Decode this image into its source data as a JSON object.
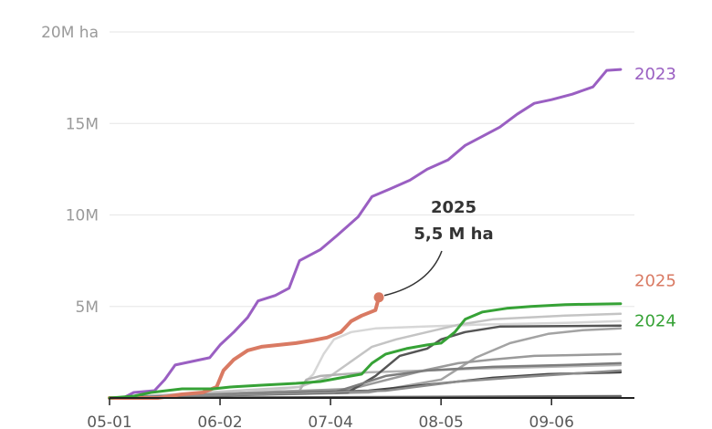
{
  "chart_data": {
    "type": "line",
    "x_format": "MM-DD",
    "xlim": [
      "05-01",
      "09-30"
    ],
    "ylim": [
      0,
      20
    ],
    "y_unit": "M ha",
    "grid": true,
    "y_ticks": [
      {
        "value": 0,
        "label": ""
      },
      {
        "value": 5,
        "label": "5M"
      },
      {
        "value": 10,
        "label": "10M"
      },
      {
        "value": 15,
        "label": "15M"
      },
      {
        "value": 20,
        "label": "20M ha"
      }
    ],
    "x_ticks": [
      "05-01",
      "06-02",
      "07-04",
      "08-05",
      "09-06"
    ],
    "annotation": {
      "line1": "2025",
      "line2": "5,5 M ha",
      "x": "07-18",
      "y": 5.5
    },
    "series": [
      {
        "name": "2023",
        "color": "#9a5fc2",
        "width": 3,
        "label": "2023",
        "points": [
          [
            "05-01",
            0
          ],
          [
            "05-05",
            0
          ],
          [
            "05-08",
            0.3
          ],
          [
            "05-14",
            0.4
          ],
          [
            "05-17",
            1.0
          ],
          [
            "05-20",
            1.8
          ],
          [
            "05-25",
            2.0
          ],
          [
            "05-30",
            2.2
          ],
          [
            "06-02",
            2.9
          ],
          [
            "06-06",
            3.6
          ],
          [
            "06-10",
            4.4
          ],
          [
            "06-13",
            5.3
          ],
          [
            "06-18",
            5.6
          ],
          [
            "06-22",
            6.0
          ],
          [
            "06-25",
            7.5
          ],
          [
            "07-01",
            8.1
          ],
          [
            "07-06",
            8.9
          ],
          [
            "07-12",
            9.9
          ],
          [
            "07-16",
            11.0
          ],
          [
            "07-21",
            11.4
          ],
          [
            "07-27",
            11.9
          ],
          [
            "08-01",
            12.5
          ],
          [
            "08-07",
            13.0
          ],
          [
            "08-12",
            13.8
          ],
          [
            "08-17",
            14.3
          ],
          [
            "08-22",
            14.8
          ],
          [
            "08-27",
            15.5
          ],
          [
            "09-01",
            16.1
          ],
          [
            "09-06",
            16.3
          ],
          [
            "09-12",
            16.6
          ],
          [
            "09-18",
            17.0
          ],
          [
            "09-22",
            17.9
          ],
          [
            "09-26",
            17.95
          ]
        ]
      },
      {
        "name": "2025",
        "color": "#d97a63",
        "width": 4,
        "label": "2025",
        "points": [
          [
            "05-01",
            0
          ],
          [
            "05-15",
            0
          ],
          [
            "05-22",
            0.2
          ],
          [
            "05-28",
            0.3
          ],
          [
            "06-01",
            0.6
          ],
          [
            "06-03",
            1.5
          ],
          [
            "06-06",
            2.1
          ],
          [
            "06-10",
            2.6
          ],
          [
            "06-14",
            2.8
          ],
          [
            "06-19",
            2.9
          ],
          [
            "06-24",
            3.0
          ],
          [
            "06-29",
            3.15
          ],
          [
            "07-03",
            3.3
          ],
          [
            "07-07",
            3.6
          ],
          [
            "07-10",
            4.2
          ],
          [
            "07-13",
            4.5
          ],
          [
            "07-17",
            4.8
          ],
          [
            "07-18",
            5.5
          ]
        ]
      },
      {
        "name": "2024",
        "color": "#36a236",
        "width": 3,
        "label": "2024",
        "points": [
          [
            "05-01",
            0
          ],
          [
            "05-08",
            0.1
          ],
          [
            "05-13",
            0.3
          ],
          [
            "05-22",
            0.5
          ],
          [
            "05-31",
            0.5
          ],
          [
            "06-05",
            0.6
          ],
          [
            "06-14",
            0.7
          ],
          [
            "06-24",
            0.8
          ],
          [
            "07-01",
            0.9
          ],
          [
            "07-07",
            1.1
          ],
          [
            "07-13",
            1.3
          ],
          [
            "07-16",
            1.9
          ],
          [
            "07-20",
            2.4
          ],
          [
            "07-26",
            2.7
          ],
          [
            "08-01",
            2.9
          ],
          [
            "08-05",
            3.0
          ],
          [
            "08-09",
            3.6
          ],
          [
            "08-12",
            4.3
          ],
          [
            "08-17",
            4.7
          ],
          [
            "08-24",
            4.9
          ],
          [
            "08-31",
            5.0
          ],
          [
            "09-10",
            5.1
          ],
          [
            "09-26",
            5.15
          ]
        ]
      },
      {
        "name": "",
        "color": "#d7d7d7",
        "width": 2.5,
        "points": [
          [
            "05-01",
            0
          ],
          [
            "06-10",
            0.3
          ],
          [
            "06-25",
            0.6
          ],
          [
            "06-29",
            1.3
          ],
          [
            "07-02",
            2.4
          ],
          [
            "07-05",
            3.2
          ],
          [
            "07-10",
            3.6
          ],
          [
            "07-17",
            3.8
          ],
          [
            "07-31",
            3.9
          ],
          [
            "08-15",
            4.0
          ],
          [
            "09-10",
            4.1
          ],
          [
            "09-26",
            4.2
          ]
        ]
      },
      {
        "name": "",
        "color": "#c4c4c4",
        "width": 2.5,
        "points": [
          [
            "05-01",
            0
          ],
          [
            "06-25",
            0.6
          ],
          [
            "07-04",
            1.2
          ],
          [
            "07-16",
            2.8
          ],
          [
            "07-23",
            3.2
          ],
          [
            "08-01",
            3.6
          ],
          [
            "08-10",
            4.0
          ],
          [
            "08-20",
            4.3
          ],
          [
            "09-10",
            4.5
          ],
          [
            "09-26",
            4.6
          ]
        ]
      },
      {
        "name": "",
        "color": "#b3b3b3",
        "width": 2.5,
        "points": [
          [
            "05-01",
            0
          ],
          [
            "06-25",
            0.4
          ],
          [
            "06-27",
            1.0
          ],
          [
            "07-01",
            1.2
          ],
          [
            "07-15",
            1.4
          ],
          [
            "08-01",
            1.5
          ],
          [
            "08-15",
            1.6
          ],
          [
            "09-26",
            1.8
          ]
        ]
      },
      {
        "name": "",
        "color": "#a3a3a3",
        "width": 2.5,
        "points": [
          [
            "05-01",
            0
          ],
          [
            "07-15",
            0.3
          ],
          [
            "08-05",
            1.0
          ],
          [
            "08-15",
            2.2
          ],
          [
            "08-25",
            3.0
          ],
          [
            "09-05",
            3.5
          ],
          [
            "09-15",
            3.7
          ],
          [
            "09-26",
            3.8
          ]
        ]
      },
      {
        "name": "",
        "color": "#9a9a9a",
        "width": 2.5,
        "points": [
          [
            "05-01",
            0
          ],
          [
            "07-10",
            0.5
          ],
          [
            "07-31",
            1.5
          ],
          [
            "08-10",
            1.9
          ],
          [
            "08-20",
            2.1
          ],
          [
            "09-01",
            2.3
          ],
          [
            "09-26",
            2.4
          ]
        ]
      },
      {
        "name": "",
        "color": "#555555",
        "width": 2.5,
        "points": [
          [
            "05-01",
            0
          ],
          [
            "07-09",
            0.3
          ],
          [
            "07-17",
            1.2
          ],
          [
            "07-24",
            2.3
          ],
          [
            "08-01",
            2.7
          ],
          [
            "08-05",
            3.2
          ],
          [
            "08-12",
            3.6
          ],
          [
            "08-22",
            3.9
          ],
          [
            "09-26",
            3.95
          ]
        ]
      },
      {
        "name": "",
        "color": "#7d7d7d",
        "width": 2.5,
        "points": [
          [
            "05-01",
            0
          ],
          [
            "07-05",
            0.3
          ],
          [
            "07-20",
            1.2
          ],
          [
            "08-01",
            1.5
          ],
          [
            "08-20",
            1.7
          ],
          [
            "09-10",
            1.8
          ],
          [
            "09-26",
            1.9
          ]
        ]
      },
      {
        "name": "",
        "color": "#444444",
        "width": 2.5,
        "points": [
          [
            "05-01",
            0
          ],
          [
            "07-15",
            0.4
          ],
          [
            "08-05",
            0.8
          ],
          [
            "08-20",
            1.1
          ],
          [
            "09-05",
            1.3
          ],
          [
            "09-26",
            1.4
          ]
        ]
      },
      {
        "name": "",
        "color": "#8c8c8c",
        "width": 2.5,
        "points": [
          [
            "05-01",
            0
          ],
          [
            "07-20",
            0.4
          ],
          [
            "08-10",
            0.9
          ],
          [
            "08-25",
            1.1
          ],
          [
            "09-10",
            1.3
          ],
          [
            "09-26",
            1.5
          ]
        ]
      },
      {
        "name": "",
        "color": "#666666",
        "width": 2.5,
        "points": [
          [
            "05-01",
            0
          ],
          [
            "09-26",
            0.1
          ]
        ]
      }
    ]
  }
}
